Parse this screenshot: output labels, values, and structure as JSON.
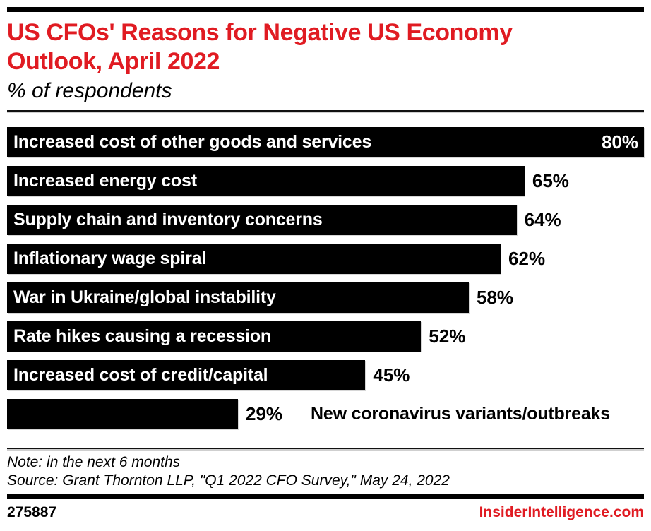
{
  "header": {
    "title": "US CFOs' Reasons for Negative US Economy Outlook, April 2022",
    "subtitle": "% of respondents"
  },
  "chart_data": {
    "type": "bar",
    "orientation": "horizontal",
    "title": "US CFOs' Reasons for Negative US Economy Outlook, April 2022",
    "subtitle": "% of respondents",
    "unit": "% of respondents",
    "xlim": [
      0,
      80
    ],
    "grid": false,
    "legend": "none",
    "bar_color": "#000000",
    "inside_text_color": "#ffffff",
    "categories": [
      "Increased cost of other goods and services",
      "Increased energy cost",
      "Supply chain and inventory concerns",
      "Inflationary wage spiral",
      "War in Ukraine/global instability",
      "Rate hikes causing a recession",
      "Increased cost of credit/capital",
      "New coronavirus variants/outbreaks"
    ],
    "values": [
      80,
      65,
      64,
      62,
      58,
      52,
      45,
      29
    ],
    "bars": [
      {
        "label": "Increased cost of other goods and services",
        "value": 80,
        "value_label": "80%"
      },
      {
        "label": "Increased energy cost",
        "value": 65,
        "value_label": "65%"
      },
      {
        "label": "Supply chain and inventory concerns",
        "value": 64,
        "value_label": "64%"
      },
      {
        "label": "Inflationary wage spiral",
        "value": 62,
        "value_label": "62%"
      },
      {
        "label": "War in Ukraine/global instability",
        "value": 58,
        "value_label": "58%"
      },
      {
        "label": "Rate hikes causing a recession",
        "value": 52,
        "value_label": "52%"
      },
      {
        "label": "Increased cost of credit/capital",
        "value": 45,
        "value_label": "45%"
      },
      {
        "label": "New coronavirus variants/outbreaks",
        "value": 29,
        "value_label": "29%"
      }
    ]
  },
  "footnotes": {
    "note": "Note: in the next 6 months",
    "source": "Source: Grant Thornton LLP, \"Q1 2022 CFO Survey,\" May 24, 2022"
  },
  "footer": {
    "chart_id": "275887",
    "site": "InsiderIntelligence.com"
  },
  "colors": {
    "accent_red": "#e01b22",
    "bar_black": "#000000",
    "inside_label_white": "#ffffff"
  }
}
